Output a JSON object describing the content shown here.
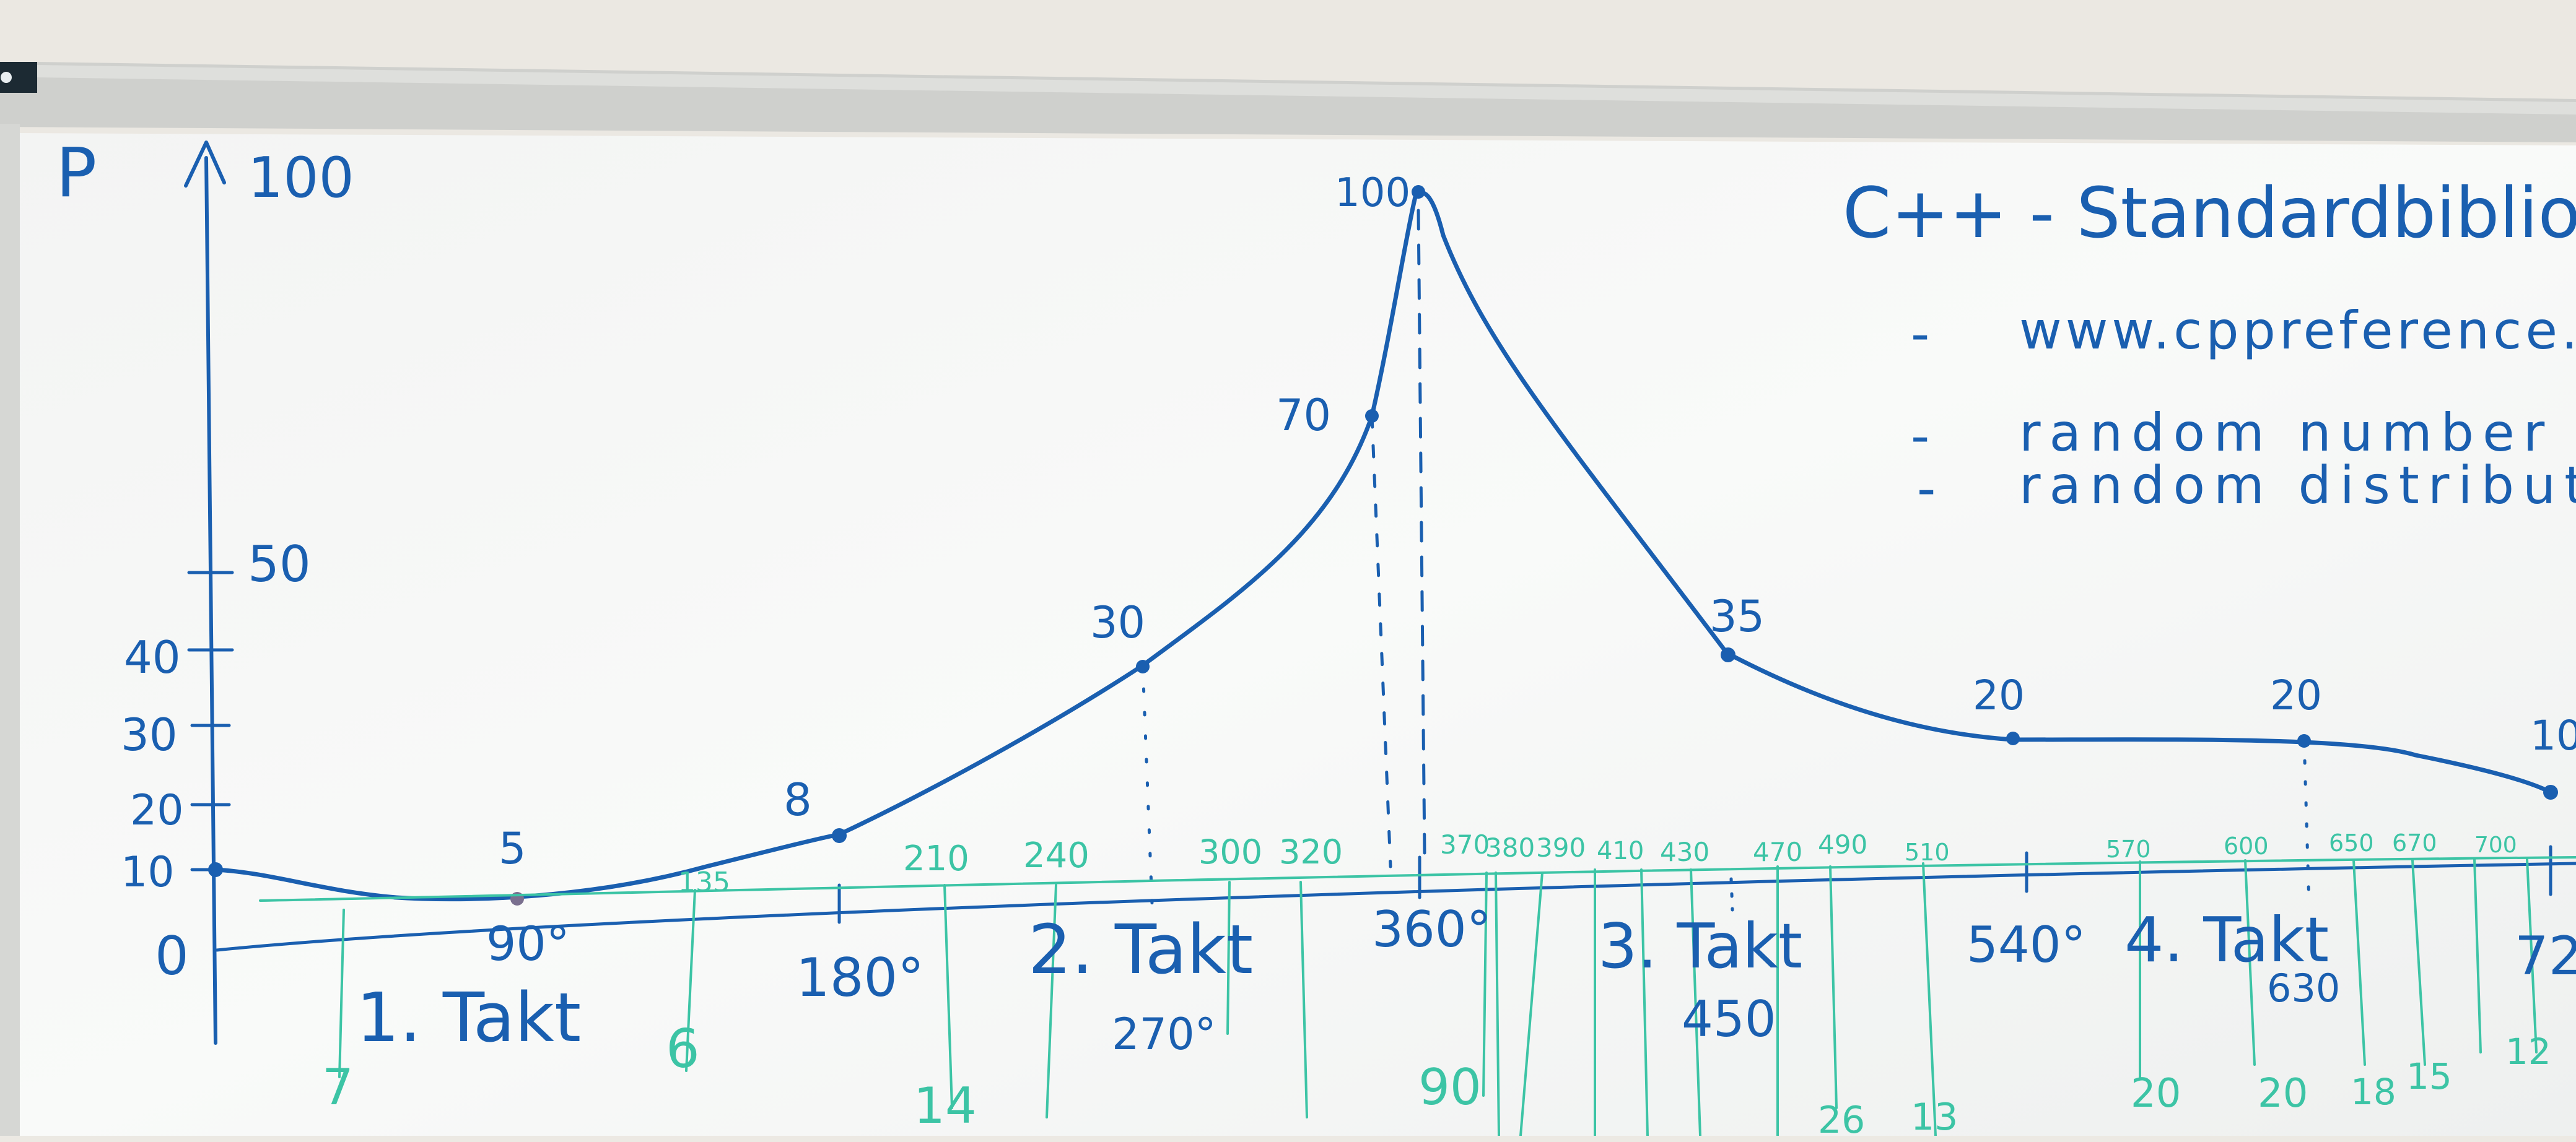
{
  "board": {
    "y_axis_label": "P",
    "y_ticks": [
      "100",
      "50",
      "40",
      "30",
      "20",
      "10",
      "0"
    ],
    "angle_labels": [
      "90°",
      "180°",
      "270°",
      "360°",
      "450",
      "540°",
      "630",
      "72"
    ],
    "takt_labels": [
      "1. Takt",
      "2. Takt",
      "3. Takt",
      "4. Takt"
    ],
    "point_labels": [
      "5",
      "8",
      "30",
      "70",
      "100",
      "35",
      "20",
      "20",
      "10"
    ],
    "green_top_labels": [
      "135",
      "210",
      "240",
      "300",
      "320",
      "370",
      "380",
      "390",
      "410",
      "430",
      "470",
      "490",
      "510",
      "570",
      "600",
      "650",
      "670",
      "700"
    ],
    "green_bottom_labels": [
      "7",
      "6",
      "14",
      "90",
      "26",
      "13",
      "20",
      "20",
      "18",
      "15",
      "12"
    ],
    "notes_title": "C++ - Standardbibliothe",
    "notes": [
      {
        "bullet": "-",
        "text": "www.cppreference.c"
      },
      {
        "bullet": "-",
        "text": "random number g"
      },
      {
        "bullet": "-",
        "text": "random distribut"
      }
    ]
  },
  "colors": {
    "ink_blue": "#1a5fb0",
    "ink_green": "#3cc4a5",
    "board": "#f6f7f6",
    "wall": "#ece9e3",
    "frame": "#c8c9c6"
  }
}
